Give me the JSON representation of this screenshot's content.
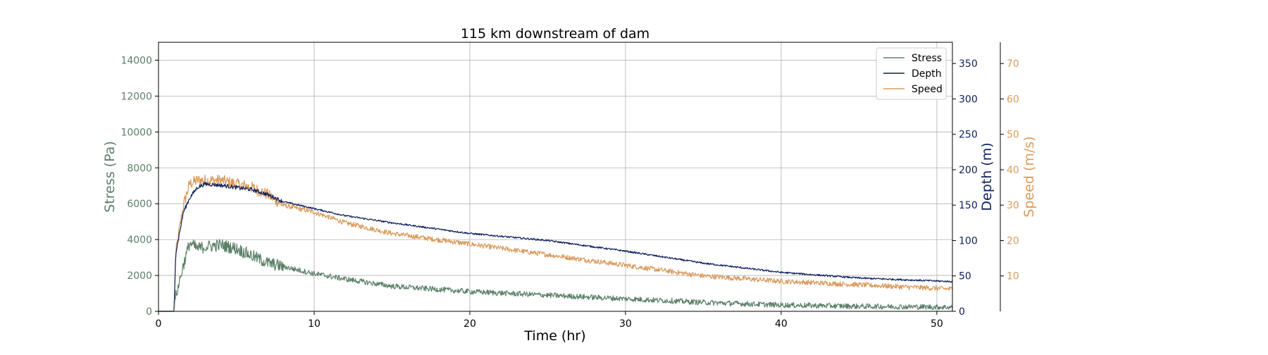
{
  "chart_data": {
    "type": "line",
    "title": "115 km downstream of dam",
    "xlabel": "Time (hr)",
    "xlim": [
      0,
      51
    ],
    "xticks": [
      0,
      10,
      20,
      30,
      40,
      50
    ],
    "grid": true,
    "legend_position": "top-right",
    "axes": [
      {
        "id": "stress",
        "label": "Stress (Pa)",
        "side": "left",
        "color": "#5b8068",
        "ylim": [
          0,
          15000
        ],
        "ticks": [
          0,
          2000,
          4000,
          6000,
          8000,
          10000,
          12000,
          14000
        ]
      },
      {
        "id": "depth",
        "label": "Depth (m)",
        "side": "right",
        "color": "#0c1f5b",
        "ylim": [
          0,
          380
        ],
        "ticks": [
          0,
          50,
          100,
          150,
          200,
          250,
          300,
          350
        ]
      },
      {
        "id": "speed",
        "label": "Speed (m/s)",
        "side": "right-offset",
        "color": "#d99a5c",
        "ylim": [
          0,
          76
        ],
        "ticks": [
          10,
          20,
          30,
          40,
          50,
          60,
          70
        ]
      }
    ],
    "series": [
      {
        "name": "Stress",
        "axis": "stress",
        "color": "#5b8068",
        "noise": 250,
        "x": [
          0,
          1.0,
          1.1,
          1.3,
          1.6,
          2.0,
          2.5,
          3,
          4,
          5,
          6,
          7,
          8,
          10,
          12,
          15,
          20,
          25,
          30,
          35,
          40,
          45,
          51
        ],
        "y": [
          0,
          0,
          800,
          1500,
          2600,
          3800,
          3500,
          3600,
          3700,
          3500,
          3100,
          2700,
          2500,
          2100,
          1800,
          1400,
          1100,
          900,
          700,
          500,
          350,
          280,
          230
        ]
      },
      {
        "name": "Depth",
        "axis": "depth",
        "color": "#0c1f5b",
        "noise": 2,
        "x": [
          0,
          1.0,
          1.1,
          1.3,
          1.6,
          2.0,
          2.5,
          3,
          4,
          5,
          6,
          7,
          8,
          10,
          12,
          15,
          20,
          25,
          30,
          35,
          40,
          45,
          51
        ],
        "y": [
          0,
          0,
          80,
          105,
          140,
          160,
          175,
          180,
          178,
          175,
          172,
          165,
          155,
          145,
          135,
          125,
          110,
          100,
          85,
          68,
          55,
          47,
          42
        ]
      },
      {
        "name": "Speed",
        "axis": "speed",
        "color": "#d99a5c",
        "noise": 1.2,
        "x": [
          0,
          1.0,
          1.1,
          1.3,
          1.6,
          2.0,
          2.5,
          3,
          4,
          5,
          6,
          7,
          8,
          10,
          12,
          15,
          20,
          25,
          30,
          35,
          40,
          45,
          51
        ],
        "y": [
          0,
          0,
          16,
          22,
          30,
          36,
          37,
          37,
          37,
          36,
          35,
          33,
          30,
          28,
          25,
          22,
          19,
          16,
          13,
          10,
          8.5,
          7.5,
          6.3
        ]
      }
    ]
  }
}
